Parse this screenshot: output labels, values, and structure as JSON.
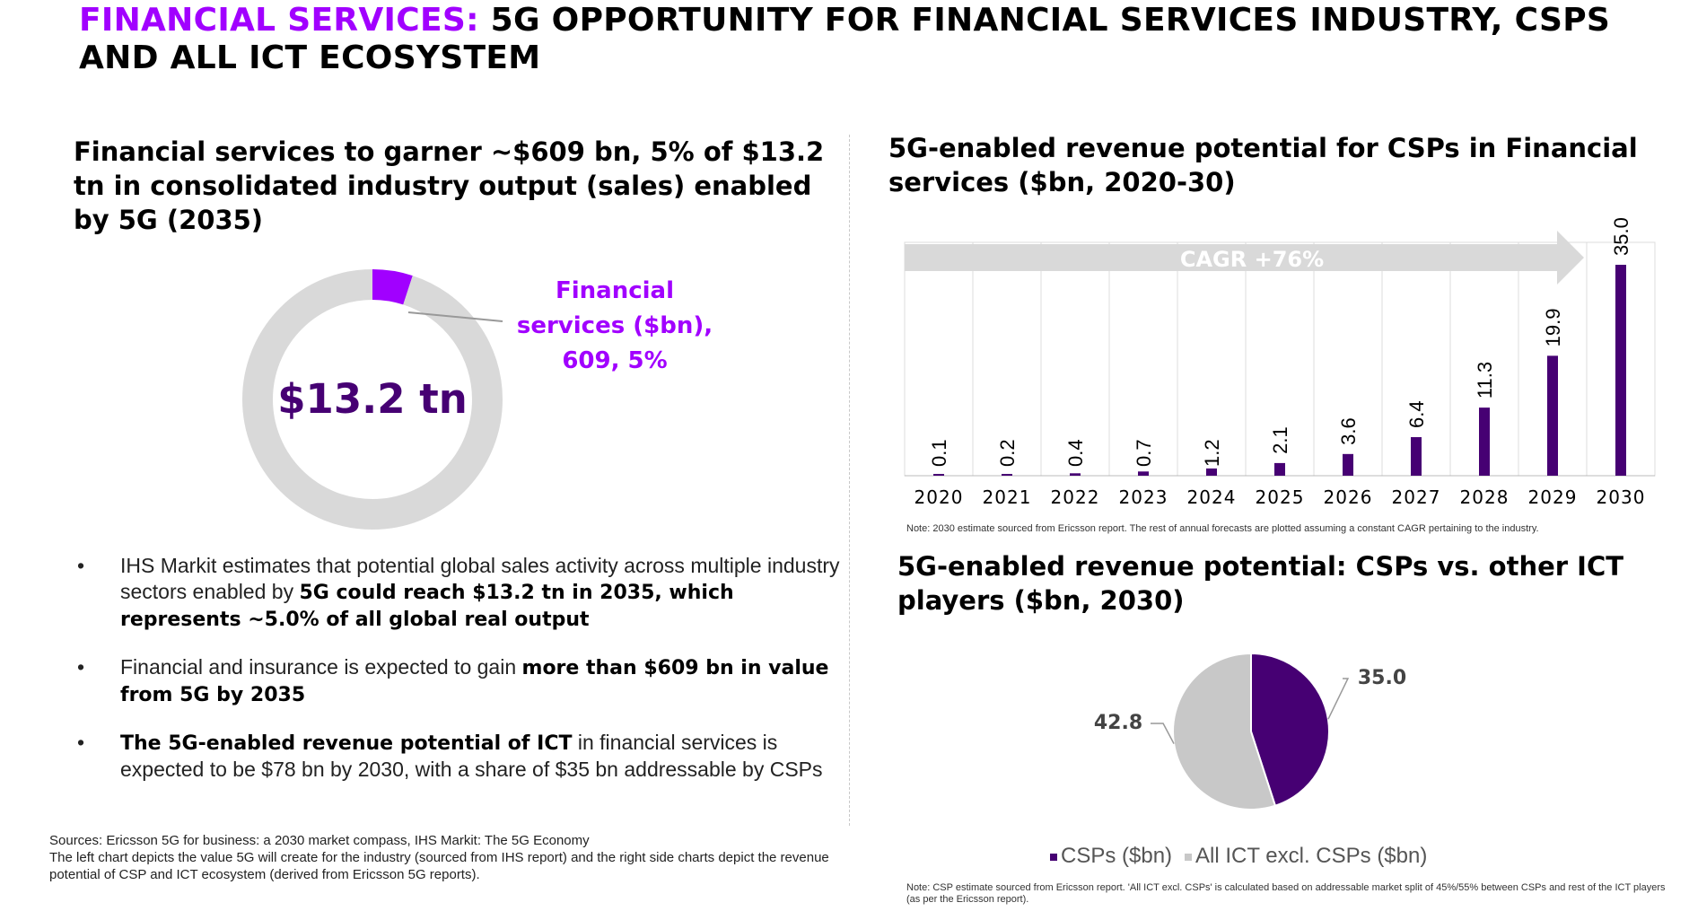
{
  "header": {
    "title_accent": "FINANCIAL SERVICES:",
    "title_rest": " 5G OPPORTUNITY FOR FINANCIAL SERVICES INDUSTRY, CSPS AND ALL ICT ECOSYSTEM"
  },
  "left": {
    "subtitle": "Financial services to garner ~$609  bn, 5% of $13.2 tn in consolidated industry output (sales) enabled by 5G (2035)",
    "donut_center": "$13.2 tn",
    "donut_label": "Financial services ($bn), 609, 5%",
    "bullets": [
      {
        "pre": "IHS Markit estimates that potential global sales activity across multiple industry sectors enabled by ",
        "bold": "5G could reach $13.2 tn in 2035, which represents ~5.0% of all global real output",
        "post": ""
      },
      {
        "pre": "Financial and insurance is expected to gain ",
        "bold": "more than $609 bn in value from 5G by 2035",
        "post": ""
      },
      {
        "pre": "",
        "bold": "The 5G-enabled revenue potential of ICT",
        "post": " in financial services is expected to be $78 bn by 2030, with a share of $35 bn addressable by CSPs"
      }
    ],
    "sources": [
      "Sources: Ericsson 5G for business: a 2030 market compass, IHS Markit: The 5G Economy",
      "The left chart depicts the value 5G will create for the industry (sourced from IHS report) and the right side charts depict the revenue potential of CSP and ICT ecosystem (derived from Ericsson 5G reports)."
    ]
  },
  "bar_panel": {
    "subtitle": "5G-enabled revenue potential for CSPs in Financial services ($bn, 2020-30)",
    "cagr_label": "CAGR +76%",
    "note": "Note: 2030 estimate sourced from Ericsson report. The rest of annual forecasts are plotted assuming a constant CAGR pertaining to the industry."
  },
  "pie_panel": {
    "subtitle": "5G-enabled revenue potential: CSPs vs. other ICT players ($bn, 2030)",
    "note": "Note: CSP estimate sourced from Ericsson report. 'All ICT excl. CSPs' is calculated based on addressable market split of 45%/55% between CSPs and rest of the ICT players (as per the Ericsson report)."
  },
  "colors": {
    "accent_purple": "#a100ff",
    "dark_purple": "#460073",
    "gray": "#d9d9d9",
    "pie_gray": "#c8c8c8"
  },
  "chart_data": [
    {
      "type": "pie",
      "variant": "donut",
      "center_label": "$13.2 tn",
      "slices": [
        {
          "name": "Financial services ($bn)",
          "value": 609,
          "percent": 5,
          "color": "#a100ff"
        },
        {
          "name": "",
          "percent": 95,
          "color": "#d9d9d9"
        }
      ]
    },
    {
      "type": "bar",
      "categories": [
        "2020",
        "2021",
        "2022",
        "2023",
        "2024",
        "2025",
        "2026",
        "2027",
        "2028",
        "2029",
        "2030"
      ],
      "values": [
        0.1,
        0.2,
        0.4,
        0.7,
        1.2,
        2.1,
        3.6,
        6.4,
        11.3,
        19.9,
        35.0
      ],
      "value_labels": [
        "0.1",
        "0.2",
        "0.4",
        "0.7",
        "1.2",
        "2.1",
        "3.6",
        "6.4",
        "11.3",
        "19.9",
        "35.0"
      ],
      "annotation": "CAGR +76%",
      "ylim": [
        0,
        35
      ],
      "color": "#460073"
    },
    {
      "type": "pie",
      "slices": [
        {
          "name": "CSPs ($bn)",
          "value": 35.0,
          "label": "35.0",
          "color": "#460073"
        },
        {
          "name": "All ICT excl. CSPs ($bn)",
          "value": 42.8,
          "label": "42.8",
          "color": "#c8c8c8"
        }
      ],
      "legend": [
        "CSPs ($bn)",
        "All ICT excl. CSPs ($bn)"
      ],
      "legend_position": "bottom"
    }
  ]
}
